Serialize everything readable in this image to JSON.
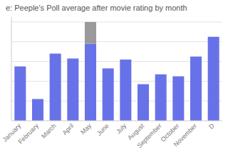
{
  "chart_data": {
    "type": "bar",
    "title": "e: Peeple's Poll average after movie rating by month",
    "categories": [
      "January",
      "February",
      "March",
      "April",
      "May",
      "June",
      "July",
      "August",
      "September",
      "October",
      "November",
      "D"
    ],
    "series": [
      {
        "color": "#6872e8",
        "values": [
          55,
          22,
          68,
          63,
          78,
          53,
          62,
          37,
          47,
          45,
          65,
          85
        ]
      },
      {
        "color": "#9a9a9a",
        "values": [
          null,
          null,
          null,
          null,
          22,
          null,
          null,
          null,
          null,
          null,
          null,
          null
        ]
      }
    ],
    "stacked": true,
    "ylim": [
      0,
      105
    ],
    "yticks": [
      20,
      40,
      60,
      80,
      100
    ],
    "grid": true,
    "tick_labels": "x"
  }
}
